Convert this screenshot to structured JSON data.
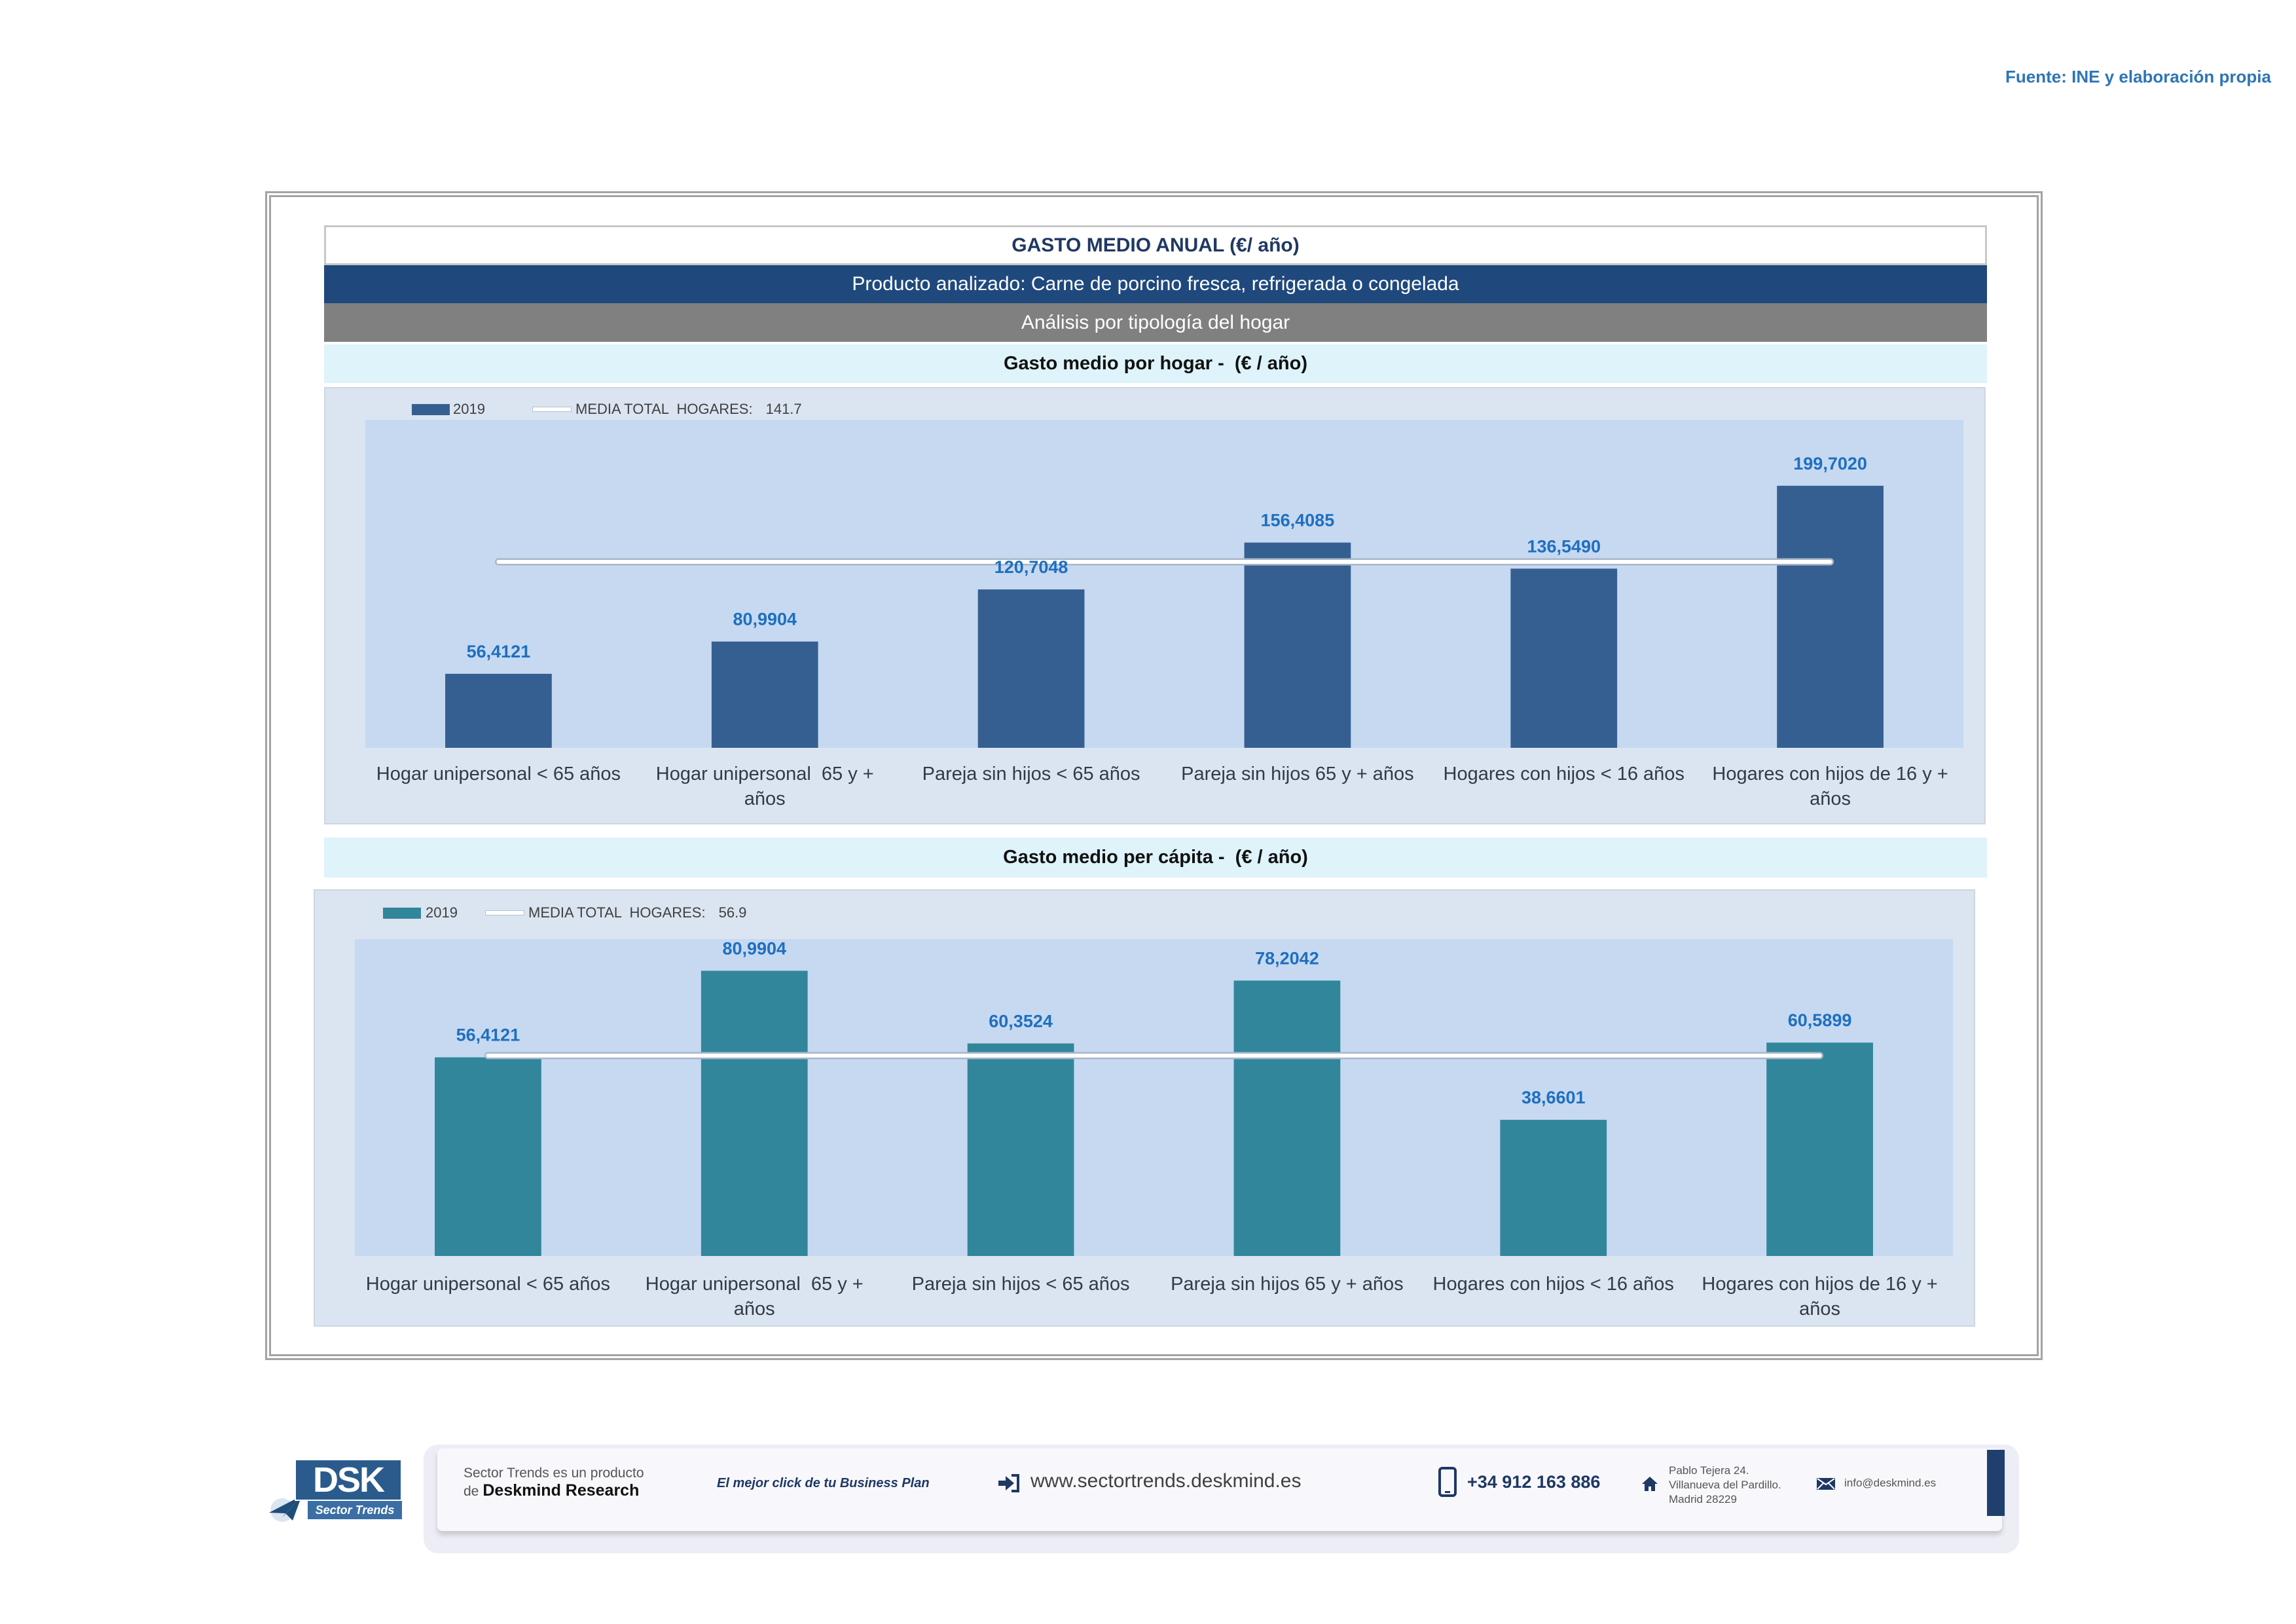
{
  "source_note": "Fuente: INE y elaboración propia",
  "header": {
    "title": "GASTO MEDIO ANUAL (€/ año)",
    "product": "Producto analizado: Carne de porcino fresca, refrigerada o congelada",
    "analysis": "Análisis por tipología del hogar"
  },
  "colors": {
    "source_note": "#2e75b6",
    "header_title": "#1f3864",
    "product_bar": "#1f497d",
    "analysis_bar": "#808080",
    "section_bar": "#def3fa",
    "chart_bg": "#dbe5f1",
    "plot_bg": "#c6d9f1",
    "data_label": "#1f6fbf",
    "mean_line": "#ffffff",
    "mean_line_edge": "#a9b7c9"
  },
  "chart_data": [
    {
      "type": "bar",
      "title": "Gasto medio por hogar -  (€ / año)",
      "xlabel": "",
      "ylabel": "",
      "categories": [
        "Hogar unipersonal < 65 años",
        "Hogar unipersonal  65 y +\naños",
        "Pareja sin hijos < 65 años",
        "Pareja sin hijos 65 y + años",
        "Hogares con hijos < 16 años",
        "Hogares con hijos de 16 y +\naños"
      ],
      "series": [
        {
          "name": "2019",
          "color": "#365f91",
          "values": [
            56.4121,
            80.9904,
            120.7048,
            156.4085,
            136.549,
            199.702
          ],
          "data_labels": [
            "56,4121",
            "80,9904",
            "120,7048",
            "156,4085",
            "136,5490",
            "199,7020"
          ]
        }
      ],
      "mean_line": {
        "label": "MEDIA TOTAL  HOGARES:",
        "value": 141.7
      },
      "ylim": [
        0,
        250
      ],
      "grid": false,
      "legend": "top-left"
    },
    {
      "type": "bar",
      "title": "Gasto medio per cápita -  (€ / año)",
      "xlabel": "",
      "ylabel": "",
      "categories": [
        "Hogar unipersonal < 65 años",
        "Hogar unipersonal  65 y +\naños",
        "Pareja sin hijos < 65 años",
        "Pareja sin hijos 65 y + años",
        "Hogares con hijos < 16 años",
        "Hogares con hijos de 16 y +\naños"
      ],
      "series": [
        {
          "name": "2019",
          "color": "#31869b",
          "values": [
            56.4121,
            80.9904,
            60.3524,
            78.2042,
            38.6601,
            60.5899
          ],
          "data_labels": [
            "56,4121",
            "80,9904",
            "60,3524",
            "78,2042",
            "38,6601",
            "60,5899"
          ]
        }
      ],
      "mean_line": {
        "label": "MEDIA TOTAL  HOGARES:",
        "value": 56.9
      },
      "ylim": [
        0,
        90
      ],
      "grid": false,
      "legend": "top-left"
    }
  ],
  "footer": {
    "logo": {
      "text": "DSK",
      "tagline": "Sector Trends"
    },
    "product_line1": "Sector Trends es un producto",
    "product_prefix": "de",
    "product_brand": "Deskmind Research",
    "slogan": "El mejor click de tu Business Plan",
    "website": "www.sectortrends.deskmind.es",
    "phone": "+34 912 163 886",
    "address": [
      "Pablo Tejera 24.",
      "Villanueva del Pardillo.",
      "Madrid 28229"
    ],
    "email": "info@deskmind.es",
    "icons": {
      "logo": "paper-plane-icon",
      "website": "arrow-right-box-icon",
      "phone": "smartphone-icon",
      "address": "home-icon",
      "email": "envelope-icon"
    }
  }
}
